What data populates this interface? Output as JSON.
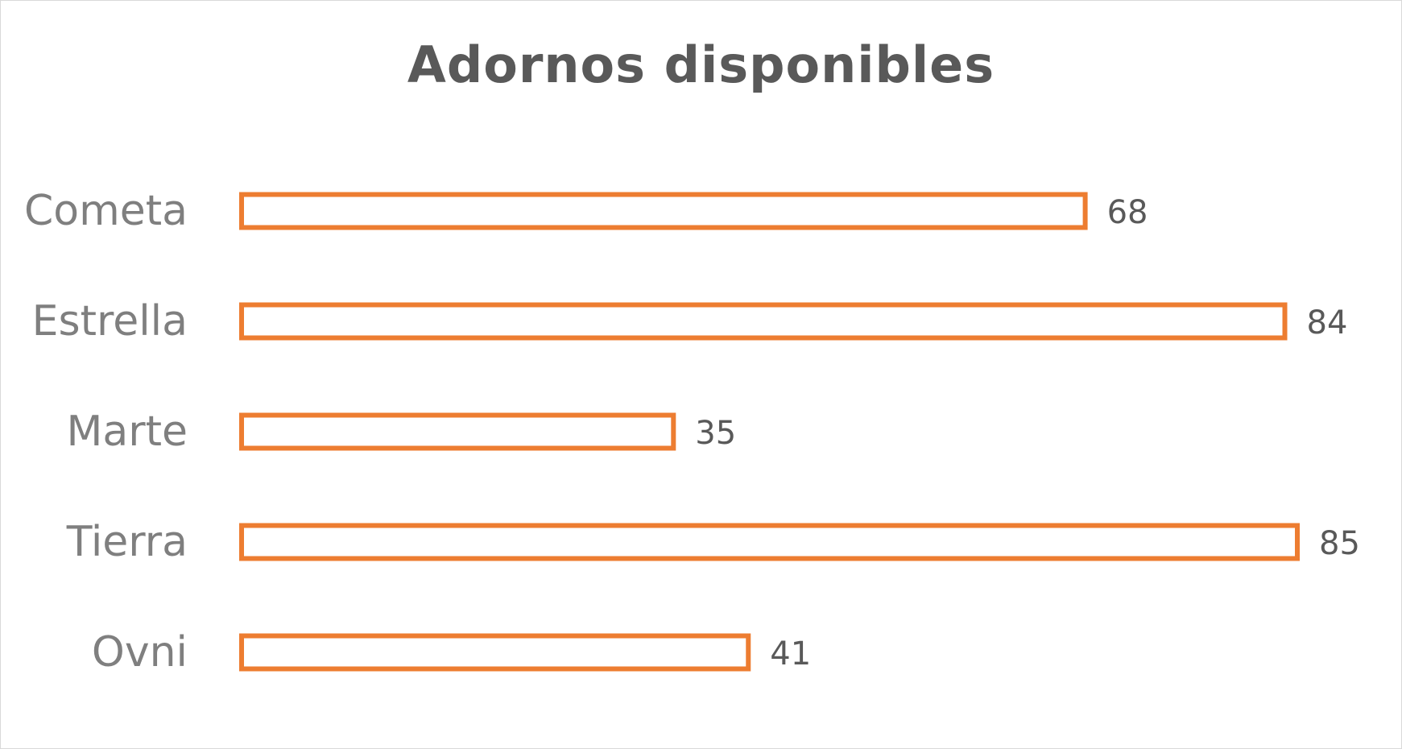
{
  "chart_data": {
    "type": "bar",
    "orientation": "horizontal",
    "title": "Adornos disponibles",
    "categories": [
      "Cometa",
      "Estrella",
      "Marte",
      "Tierra",
      "Ovni"
    ],
    "values": [
      68,
      84,
      35,
      85,
      41
    ],
    "xlabel": "",
    "ylabel": "",
    "xlim": [
      0,
      85
    ],
    "grid": false,
    "legend": "none",
    "data_labels": true,
    "bar_style": "outline",
    "colors": {
      "bar_stroke": "#ED7D31",
      "bar_fill": "#FFFFFF",
      "title": "#595959",
      "category_text": "#7F7F7F",
      "value_text": "#595959",
      "frame_border": "#D9D9D9"
    }
  }
}
